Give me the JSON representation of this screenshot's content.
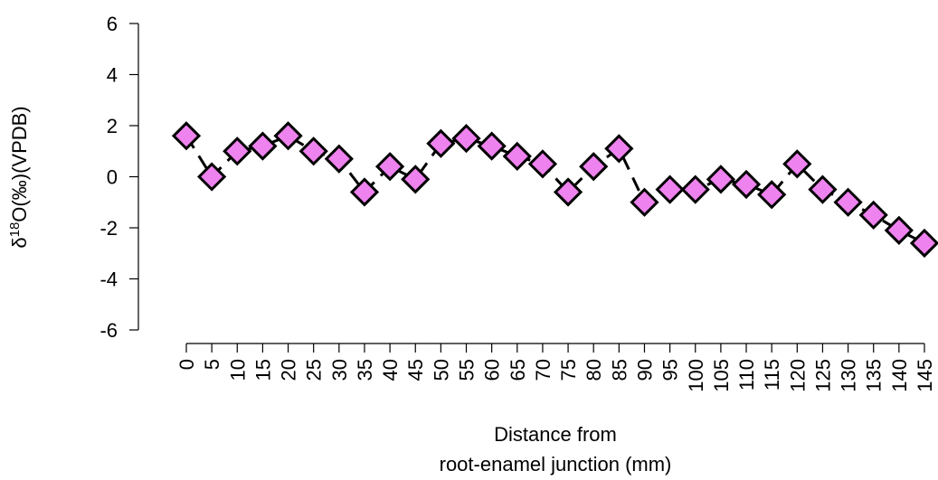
{
  "chart_data": {
    "type": "line",
    "xlabel": [
      "Distance from",
      "root-enamel junction (mm)"
    ],
    "ylabel": {
      "prefix": "δ",
      "sup": "18",
      "rest": "O(‰)(VPDB)"
    },
    "ylim": [
      -6,
      6
    ],
    "yticks": [
      "-6",
      "-4",
      "-2",
      "0",
      "2",
      "4",
      "6"
    ],
    "xlim": [
      0,
      145
    ],
    "xticks": [
      "0",
      "5",
      "10",
      "15",
      "20",
      "25",
      "30",
      "35",
      "40",
      "45",
      "50",
      "55",
      "60",
      "65",
      "70",
      "75",
      "80",
      "85",
      "90",
      "95",
      "100",
      "105",
      "110",
      "115",
      "120",
      "125",
      "130",
      "135",
      "140",
      "145"
    ],
    "grid": false,
    "series": [
      {
        "marker": "diamond",
        "line_style": "dashed",
        "color": "#ee82ee",
        "points": [
          {
            "x": 0,
            "y": 1.6
          },
          {
            "x": 5,
            "y": 0.0
          },
          {
            "x": 10,
            "y": 1.0
          },
          {
            "x": 15,
            "y": 1.2
          },
          {
            "x": 20,
            "y": 1.6
          },
          {
            "x": 25,
            "y": 1.0
          },
          {
            "x": 30,
            "y": 0.7
          },
          {
            "x": 35,
            "y": -0.6
          },
          {
            "x": 40,
            "y": 0.4
          },
          {
            "x": 45,
            "y": -0.1
          },
          {
            "x": 50,
            "y": 1.3
          },
          {
            "x": 55,
            "y": 1.5
          },
          {
            "x": 60,
            "y": 1.2
          },
          {
            "x": 65,
            "y": 0.8
          },
          {
            "x": 70,
            "y": 0.5
          },
          {
            "x": 75,
            "y": -0.6
          },
          {
            "x": 80,
            "y": 0.4
          },
          {
            "x": 85,
            "y": 1.1
          },
          {
            "x": 90,
            "y": -1.0
          },
          {
            "x": 95,
            "y": -0.5
          },
          {
            "x": 100,
            "y": -0.5
          },
          {
            "x": 105,
            "y": -0.1
          },
          {
            "x": 110,
            "y": -0.3
          },
          {
            "x": 115,
            "y": -0.7
          },
          {
            "x": 120,
            "y": 0.5
          },
          {
            "x": 125,
            "y": -0.5
          },
          {
            "x": 130,
            "y": -1.0
          },
          {
            "x": 135,
            "y": -1.5
          },
          {
            "x": 140,
            "y": -2.1
          },
          {
            "x": 145,
            "y": -2.6
          }
        ]
      }
    ]
  }
}
